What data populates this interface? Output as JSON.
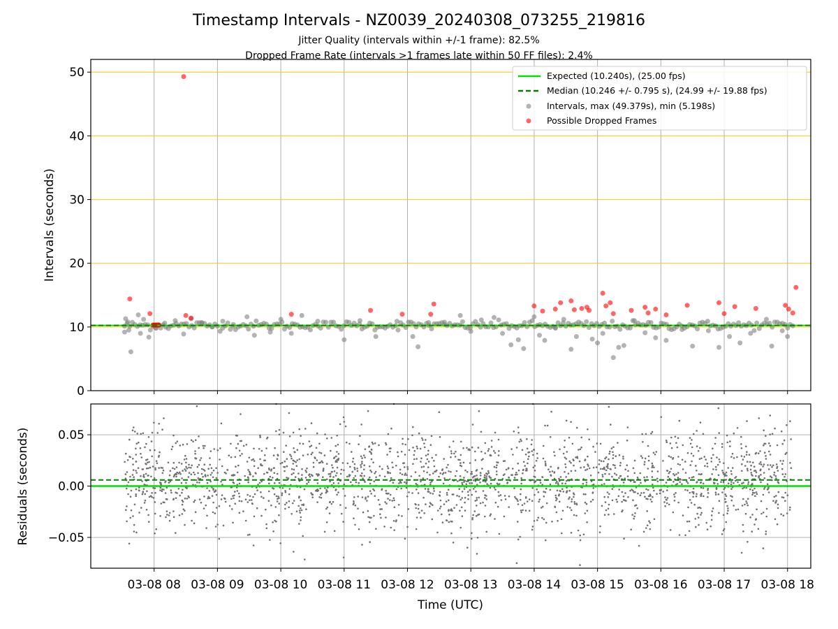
{
  "title": "Timestamp Intervals - NZ0039_20240308_073255_219816",
  "subtitle1": "Jitter Quality (intervals within +/-1 frame): 82.5%",
  "subtitle2": "Dropped Frame Rate (intervals >1 frames late within 50 FF files): 2.4%",
  "colors": {
    "expected": "#00e000",
    "median": "#008000",
    "intervals": "#808080",
    "dropped": "#ff0000",
    "hgrid_top": "#ffc000",
    "grid": "#b0b0b0"
  },
  "chart_data": [
    {
      "type": "scatter",
      "ylabel": "Intervals (seconds)",
      "ylim": [
        0,
        52
      ],
      "yticks": [
        "0",
        "10",
        "20",
        "30",
        "40",
        "50"
      ],
      "grid": true,
      "legend_position": "top-right",
      "legend": [
        "Expected (10.240s), (25.00 fps)",
        "Median (10.246 +/- 0.795 s), (24.99 +/- 19.88 fps)",
        "Intervals, max (49.379s), min (5.198s)",
        "Possible Dropped Frames"
      ],
      "expected_line": 10.24,
      "median_line": 10.246,
      "series": [
        {
          "name": "Intervals, max (49.379s), min (5.198s)",
          "points": [
            [
              "07:32",
              9.2
            ],
            [
              "07:33",
              11.3
            ],
            [
              "07:35",
              10.8
            ],
            [
              "07:36",
              9.5
            ],
            [
              "07:38",
              6.1
            ],
            [
              "07:45",
              11.9
            ],
            [
              "07:47",
              9.0
            ],
            [
              "07:50",
              11.2
            ],
            [
              "07:55",
              8.4
            ],
            [
              "08:02",
              9.8
            ],
            [
              "08:10",
              10.6
            ],
            [
              "08:20",
              11.0
            ],
            [
              "08:28",
              8.9
            ],
            [
              "08:35",
              11.3
            ],
            [
              "08:45",
              10.7
            ],
            [
              "08:55",
              10.0
            ],
            [
              "09:05",
              10.9
            ],
            [
              "09:15",
              10.4
            ],
            [
              "09:28",
              11.6
            ],
            [
              "09:35",
              8.7
            ],
            [
              "09:50",
              9.2
            ],
            [
              "10:00",
              11.2
            ],
            [
              "10:10",
              9.0
            ],
            [
              "10:20",
              11.8
            ],
            [
              "10:35",
              10.9
            ],
            [
              "11:00",
              8.0
            ],
            [
              "11:15",
              11.0
            ],
            [
              "11:30",
              8.5
            ],
            [
              "11:50",
              10.9
            ],
            [
              "12:05",
              8.5
            ],
            [
              "12:10",
              6.9
            ],
            [
              "12:20",
              10.7
            ],
            [
              "12:35",
              10.4
            ],
            [
              "12:50",
              11.8
            ],
            [
              "13:00",
              9.3
            ],
            [
              "13:10",
              11.1
            ],
            [
              "13:22",
              11.5
            ],
            [
              "13:30",
              9.0
            ],
            [
              "13:38",
              7.2
            ],
            [
              "13:45",
              8.0
            ],
            [
              "13:50",
              6.6
            ],
            [
              "14:00",
              11.6
            ],
            [
              "14:05",
              8.7
            ],
            [
              "14:10",
              7.9
            ],
            [
              "14:20",
              9.9
            ],
            [
              "14:28",
              11.2
            ],
            [
              "14:35",
              6.5
            ],
            [
              "14:40",
              8.5
            ],
            [
              "14:55",
              8.1
            ],
            [
              "15:00",
              7.5
            ],
            [
              "15:05",
              9.0
            ],
            [
              "15:15",
              5.2
            ],
            [
              "15:20",
              6.8
            ],
            [
              "15:25",
              7.1
            ],
            [
              "15:35",
              11.0
            ],
            [
              "15:45",
              9.1
            ],
            [
              "15:55",
              8.3
            ],
            [
              "16:05",
              7.9
            ],
            [
              "16:20",
              9.6
            ],
            [
              "16:30",
              7.0
            ],
            [
              "16:45",
              9.4
            ],
            [
              "16:55",
              6.8
            ],
            [
              "17:05",
              8.5
            ],
            [
              "17:15",
              7.5
            ],
            [
              "17:25",
              9.0
            ],
            [
              "17:40",
              11.2
            ],
            [
              "17:45",
              7.0
            ],
            [
              "17:55",
              9.4
            ],
            [
              "18:00",
              8.5
            ]
          ]
        },
        {
          "name": "Possible Dropped Frames",
          "points": [
            [
              "07:37",
              14.4
            ],
            [
              "07:56",
              12.1
            ],
            [
              "08:28",
              49.3
            ],
            [
              "08:30",
              11.8
            ],
            [
              "08:35",
              11.4
            ],
            [
              "10:10",
              12.0
            ],
            [
              "11:25",
              12.6
            ],
            [
              "11:55",
              12.0
            ],
            [
              "12:22",
              12.0
            ],
            [
              "12:25",
              13.6
            ],
            [
              "14:00",
              13.3
            ],
            [
              "14:08",
              12.5
            ],
            [
              "14:20",
              12.8
            ],
            [
              "14:25",
              13.8
            ],
            [
              "14:35",
              14.1
            ],
            [
              "14:38",
              12.7
            ],
            [
              "14:45",
              12.9
            ],
            [
              "14:50",
              13.1
            ],
            [
              "14:52",
              12.6
            ],
            [
              "15:05",
              15.3
            ],
            [
              "15:08",
              13.3
            ],
            [
              "15:12",
              13.8
            ],
            [
              "15:15",
              12.1
            ],
            [
              "15:32",
              12.6
            ],
            [
              "15:45",
              13.1
            ],
            [
              "15:48",
              12.2
            ],
            [
              "15:55",
              12.8
            ],
            [
              "16:05",
              11.9
            ],
            [
              "16:25",
              13.4
            ],
            [
              "16:55",
              13.8
            ],
            [
              "17:00",
              12.1
            ],
            [
              "17:10",
              13.2
            ],
            [
              "17:30",
              12.9
            ],
            [
              "17:58",
              13.4
            ],
            [
              "18:01",
              12.8
            ],
            [
              "18:05",
              12.2
            ],
            [
              "18:08",
              16.2
            ]
          ]
        }
      ]
    },
    {
      "type": "scatter",
      "xlabel": "Time (UTC)",
      "ylabel": "Residuals (seconds)",
      "ylim": [
        -0.08,
        0.08
      ],
      "yticks": [
        "−0.05",
        "0.00",
        "0.05"
      ],
      "xticks": [
        "03-08 08",
        "03-08 09",
        "03-08 10",
        "03-08 11",
        "03-08 12",
        "03-08 13",
        "03-08 14",
        "03-08 15",
        "03-08 16",
        "03-08 17",
        "03-08 18"
      ],
      "xlim": [
        "07:00",
        "18:22"
      ],
      "expected_line": 0.0,
      "median_line": 0.006,
      "grid": true,
      "series": [
        {
          "name": "Residuals",
          "distribution": {
            "center": 0.006,
            "range": [
              -0.077,
              0.08
            ],
            "x_range": [
              "07:32",
              "18:05"
            ]
          }
        }
      ]
    }
  ]
}
